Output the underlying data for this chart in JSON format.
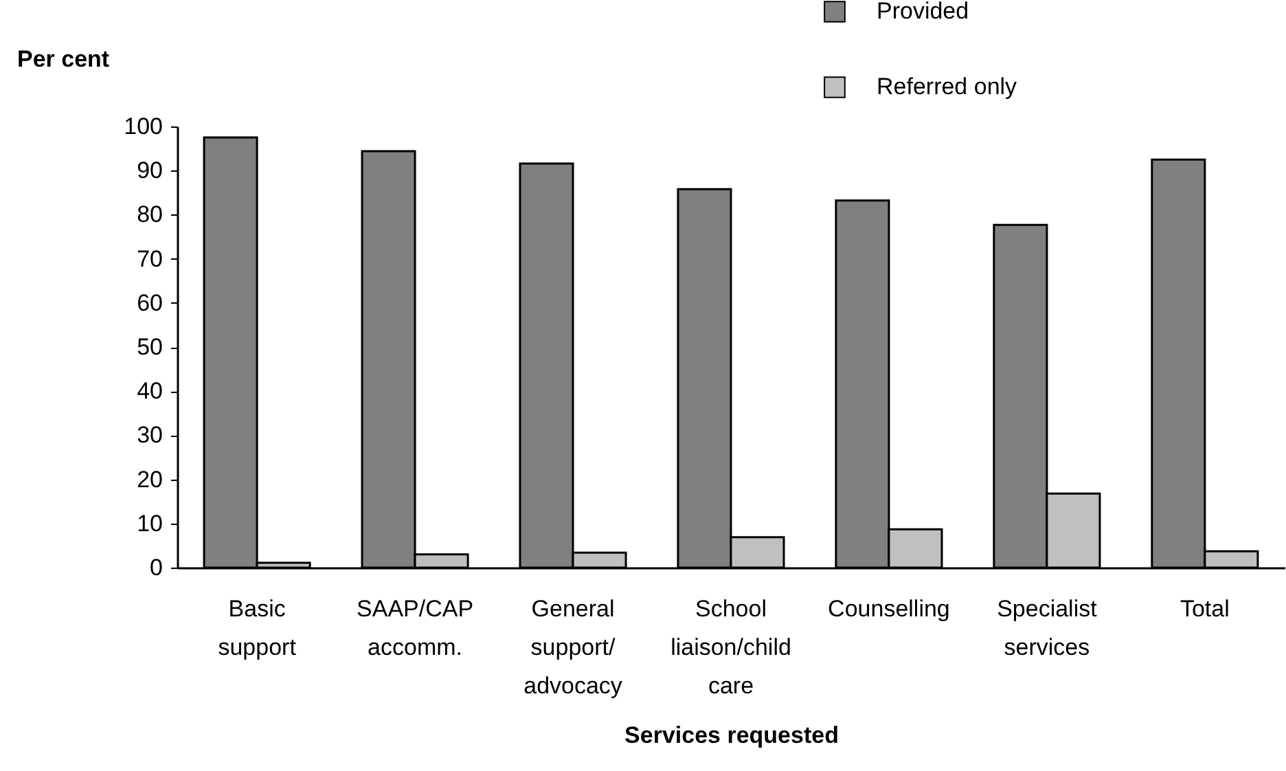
{
  "chart_data": {
    "type": "bar",
    "xlabel": "Services requested",
    "ylabel": "Per cent",
    "categories": [
      "Basic\nsupport",
      "SAAP/CAP\naccomm.",
      "General\nsupport/\nadvocacy",
      "School\nliaison/child\ncare",
      "Counselling",
      "Specialist\nservices",
      "Total"
    ],
    "series": [
      {
        "name": "Provided",
        "color": "#808080",
        "values": [
          97.5,
          94.4,
          91.6,
          85.8,
          83.2,
          77.7,
          92.5
        ]
      },
      {
        "name": "Referred only",
        "color": "#c0c0c0",
        "values": [
          1.1,
          3.0,
          3.4,
          6.9,
          8.7,
          16.8,
          3.7
        ]
      }
    ],
    "ylim": [
      0,
      100
    ],
    "yticks": [
      0,
      10,
      20,
      30,
      40,
      50,
      60,
      70,
      80,
      90,
      100
    ],
    "grid": false,
    "legend": "top right"
  }
}
